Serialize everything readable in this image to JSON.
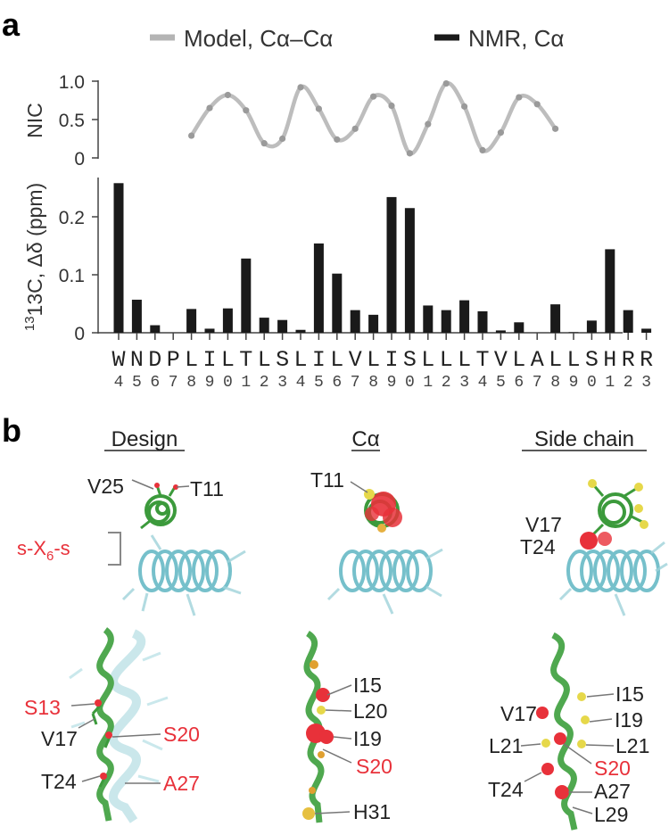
{
  "panel_a": {
    "letter": "a",
    "legend": {
      "model": "Model, Cα–Cα",
      "nmr": "NMR, Cα",
      "model_color": "#b4b4b4",
      "nmr_color": "#1a1a1a"
    },
    "residue_letters": [
      "W",
      "N",
      "D",
      "P",
      "L",
      "I",
      "L",
      "T",
      "L",
      "S",
      "L",
      "I",
      "L",
      "V",
      "L",
      "I",
      "S",
      "L",
      "L",
      "L",
      "T",
      "V",
      "L",
      "A",
      "L",
      "L",
      "S",
      "H",
      "R",
      "R"
    ],
    "residue_numbers": [
      "4",
      "5",
      "6",
      "7",
      "8",
      "9",
      "0",
      "1",
      "2",
      "3",
      "4",
      "5",
      "6",
      "7",
      "8",
      "9",
      "0",
      "1",
      "2",
      "3",
      "4",
      "5",
      "6",
      "7",
      "8",
      "9",
      "0",
      "1",
      "2",
      "3"
    ]
  },
  "chart_data": [
    {
      "type": "line",
      "ylabel": "NIC",
      "ylim": [
        0,
        1.0
      ],
      "yticks": [
        "1.0",
        "0.5",
        "0"
      ],
      "series": [
        {
          "name": "Model, Cα–Cα",
          "x": [
            8,
            9,
            10,
            11,
            12,
            13,
            14,
            15,
            16,
            17,
            18,
            19,
            20,
            21,
            22,
            23,
            24,
            25,
            26,
            27,
            28
          ],
          "y": [
            0.29,
            0.65,
            0.82,
            0.62,
            0.19,
            0.25,
            0.92,
            0.64,
            0.24,
            0.38,
            0.8,
            0.68,
            0.06,
            0.44,
            0.97,
            0.67,
            0.1,
            0.33,
            0.79,
            0.7,
            0.38
          ]
        }
      ]
    },
    {
      "type": "bar",
      "ylabel": "13C, Δδ (ppm)",
      "ylim": [
        0,
        0.27
      ],
      "yticks": [
        "0.2",
        "0.1",
        "0"
      ],
      "categories": [
        "W4",
        "N5",
        "D6",
        "P7",
        "L8",
        "I9",
        "L10",
        "T11",
        "L12",
        "S13",
        "L14",
        "I15",
        "L16",
        "V17",
        "L18",
        "I19",
        "S20",
        "L21",
        "L22",
        "L23",
        "T24",
        "V25",
        "L26",
        "A27",
        "L28",
        "L29",
        "S30",
        "H31",
        "R32",
        "R33"
      ],
      "series": [
        {
          "name": "NMR, Cα",
          "values": [
            0.258,
            0.057,
            0.013,
            0,
            0.041,
            0.007,
            0.042,
            0.128,
            0.026,
            0.022,
            0.005,
            0.154,
            0.102,
            0.039,
            0.031,
            0.234,
            0.215,
            0.047,
            0.039,
            0.056,
            0.037,
            0.004,
            0.018,
            0,
            0.049,
            0.001,
            0.021,
            0.144,
            0.039,
            0.007
          ]
        }
      ]
    }
  ],
  "panel_b": {
    "letter": "b",
    "headers": {
      "design": "Design",
      "calpha": "Cα",
      "side_chain": "Side chain"
    },
    "bracket_label_pre": "s-X",
    "bracket_label_sub": "6",
    "bracket_label_post": "-s",
    "top_labels": {
      "design_v25": "V25",
      "design_t11": "T11",
      "ca_t11": "T11",
      "sc_v17": "V17",
      "sc_t24": "T24"
    },
    "bottom_labels": {
      "design_s13": "S13",
      "design_v17": "V17",
      "design_s20": "S20",
      "design_t24": "T24",
      "design_a27": "A27",
      "ca_i15": "I15",
      "ca_l20": "L20",
      "ca_i19": "I19",
      "ca_s20": "S20",
      "ca_h31": "H31",
      "sc_i15": "I15",
      "sc_v17": "V17",
      "sc_i19": "I19",
      "sc_l21_left": "L21",
      "sc_l21_right": "L21",
      "sc_s20": "S20",
      "sc_t24": "T24",
      "sc_a27": "A27",
      "sc_l29": "L29"
    },
    "colors": {
      "highlight_red": "#e8313a",
      "helix_green": "#4fa84f",
      "helix_cyan": "#5fb6c2"
    }
  }
}
